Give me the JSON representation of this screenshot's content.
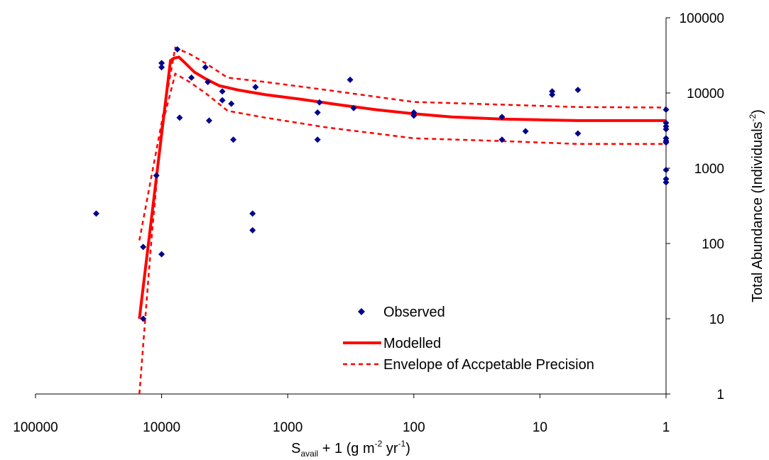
{
  "chart_data": {
    "type": "scatter",
    "x_scale": "log",
    "x_reversed": true,
    "y_scale": "log",
    "xlim": [
      1,
      100000
    ],
    "ylim": [
      1,
      100000
    ],
    "grid": false,
    "legend_position": "center-right",
    "x_ticks": [
      "100000",
      "10000",
      "1000",
      "100",
      "10",
      "1"
    ],
    "y_ticks": [
      "1",
      "10",
      "100",
      "1000",
      "10000",
      "100000"
    ],
    "xlabel": {
      "main": "S",
      "sub": "avail",
      "rest": " +  1 (g m",
      "sup1": "-2",
      "mid": " yr",
      "sup2": "-1",
      "end": ")"
    },
    "ylabel": {
      "main": "Total Abundance (Individuals",
      "sup": "-2",
      "end": ")"
    },
    "series": [
      {
        "name": "Observed",
        "kind": "scatter",
        "color": "#00008B",
        "points": [
          [
            33000,
            250
          ],
          [
            14000,
            90
          ],
          [
            14000,
            10
          ],
          [
            11000,
            800
          ],
          [
            10000,
            72
          ],
          [
            10000,
            22000
          ],
          [
            10000,
            25000
          ],
          [
            7500,
            38000
          ],
          [
            7200,
            4700
          ],
          [
            5800,
            16000
          ],
          [
            4500,
            22000
          ],
          [
            4300,
            14000
          ],
          [
            4200,
            4300
          ],
          [
            3300,
            8000
          ],
          [
            3300,
            10500
          ],
          [
            2800,
            7200
          ],
          [
            2700,
            2400
          ],
          [
            1900,
            250
          ],
          [
            1900,
            150
          ],
          [
            1800,
            12000
          ],
          [
            580,
            5500
          ],
          [
            560,
            7500
          ],
          [
            580,
            2400
          ],
          [
            320,
            15000
          ],
          [
            300,
            6300
          ],
          [
            100,
            5500
          ],
          [
            100,
            5000
          ],
          [
            20,
            4800
          ],
          [
            20,
            2400
          ],
          [
            13,
            3100
          ],
          [
            8,
            10500
          ],
          [
            8,
            9500
          ],
          [
            5,
            11000
          ],
          [
            5,
            2900
          ],
          [
            1,
            6000
          ],
          [
            1,
            4000
          ],
          [
            1,
            3600
          ],
          [
            1,
            3300
          ],
          [
            1,
            2500
          ],
          [
            1,
            2300
          ],
          [
            1,
            2200
          ],
          [
            1,
            950
          ],
          [
            1,
            720
          ],
          [
            1,
            650
          ]
        ]
      },
      {
        "name": "Modelled",
        "kind": "line",
        "color": "#FF0000",
        "points": [
          [
            15000,
            10
          ],
          [
            8500,
            27000
          ],
          [
            8000,
            29000
          ],
          [
            7300,
            30000
          ],
          [
            6500,
            25000
          ],
          [
            5500,
            19000
          ],
          [
            4500,
            15500
          ],
          [
            3500,
            12500
          ],
          [
            2500,
            11000
          ],
          [
            1500,
            9500
          ],
          [
            800,
            8300
          ],
          [
            400,
            7000
          ],
          [
            200,
            6000
          ],
          [
            100,
            5300
          ],
          [
            50,
            4800
          ],
          [
            20,
            4500
          ],
          [
            10,
            4400
          ],
          [
            5,
            4300
          ],
          [
            1,
            4300
          ]
        ]
      },
      {
        "name": "Envelope of Accpetable Precision",
        "kind": "dashed-line",
        "color": "#FF0000",
        "points": [
          [
            15000,
            110
          ],
          [
            12000,
            800
          ],
          [
            10000,
            4000
          ],
          [
            7800,
            40000
          ],
          [
            6000,
            33000
          ],
          [
            4500,
            25000
          ],
          [
            3000,
            16000
          ],
          [
            1500,
            14000
          ],
          [
            500,
            11000
          ],
          [
            100,
            7600
          ],
          [
            20,
            7000
          ],
          [
            5,
            6500
          ],
          [
            1,
            6400
          ]
        ]
      },
      {
        "name": "Envelope of Accpetable Precision",
        "kind": "dashed-line",
        "color": "#FF0000",
        "points": [
          [
            15000,
            1
          ],
          [
            12000,
            120
          ],
          [
            10000,
            3500
          ],
          [
            7800,
            18000
          ],
          [
            6000,
            14000
          ],
          [
            4500,
            10000
          ],
          [
            3000,
            5800
          ],
          [
            1500,
            4700
          ],
          [
            500,
            3500
          ],
          [
            100,
            2500
          ],
          [
            20,
            2300
          ],
          [
            5,
            2100
          ],
          [
            1,
            2100
          ]
        ]
      }
    ],
    "legend": {
      "observed": "Observed",
      "modelled": "Modelled",
      "envelope": "Envelope of Accpetable Precision"
    }
  }
}
